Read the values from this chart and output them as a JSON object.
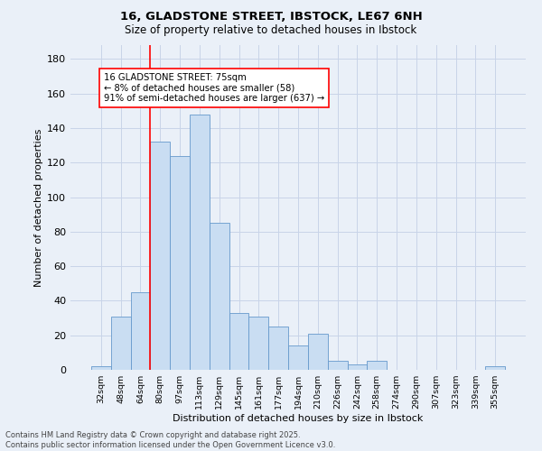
{
  "title": "16, GLADSTONE STREET, IBSTOCK, LE67 6NH",
  "subtitle": "Size of property relative to detached houses in Ibstock",
  "xlabel": "Distribution of detached houses by size in Ibstock",
  "ylabel": "Number of detached properties",
  "categories": [
    "32sqm",
    "48sqm",
    "64sqm",
    "80sqm",
    "97sqm",
    "113sqm",
    "129sqm",
    "145sqm",
    "161sqm",
    "177sqm",
    "194sqm",
    "210sqm",
    "226sqm",
    "242sqm",
    "258sqm",
    "274sqm",
    "290sqm",
    "307sqm",
    "323sqm",
    "339sqm",
    "355sqm"
  ],
  "values": [
    2,
    31,
    45,
    132,
    124,
    148,
    85,
    33,
    31,
    25,
    14,
    21,
    5,
    3,
    5,
    0,
    0,
    0,
    0,
    0,
    2
  ],
  "bar_color": "#c9ddf2",
  "bar_edge_color": "#6699cc",
  "grid_color": "#c8d4e8",
  "background_color": "#eaf0f8",
  "red_line_index": 2.5,
  "annotation_text": "16 GLADSTONE STREET: 75sqm\n← 8% of detached houses are smaller (58)\n91% of semi-detached houses are larger (637) →",
  "annotation_box_color": "white",
  "annotation_box_edge": "red",
  "footer": "Contains HM Land Registry data © Crown copyright and database right 2025.\nContains public sector information licensed under the Open Government Licence v3.0.",
  "ylim": [
    0,
    188
  ],
  "yticks": [
    0,
    20,
    40,
    60,
    80,
    100,
    120,
    140,
    160,
    180
  ]
}
